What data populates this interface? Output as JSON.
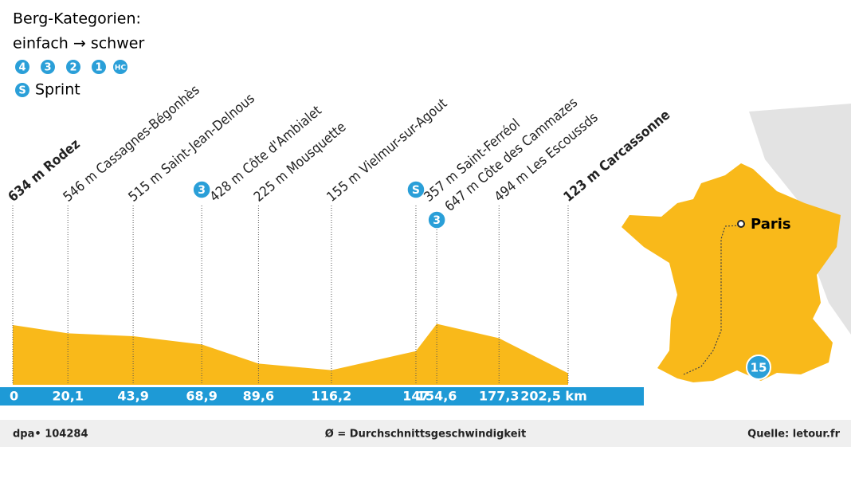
{
  "chart_data": {
    "type": "area",
    "x": [
      0,
      20.1,
      43.9,
      68.9,
      89.6,
      116.2,
      147,
      154.6,
      177.3,
      202.5
    ],
    "values": [
      634,
      546,
      515,
      428,
      225,
      155,
      357,
      647,
      494,
      123
    ],
    "value_labels": [
      "634 m Rodez",
      "546 m Cassagnes-Bégonhès",
      "515 m Saint-Jean-Delnous",
      "428 m Côte d'Ambialet",
      "225 m Mousquette",
      "155 m Vielmur-sur-Agout",
      "357 m Saint-Ferréol",
      "647 m Côte des Cammazes",
      "494 m Les Escoussds",
      "123 m Carcassonne"
    ],
    "badges": [
      null,
      null,
      null,
      "3",
      null,
      null,
      "S",
      "3",
      null,
      null
    ],
    "color": "#f9b91a",
    "xlim": [
      0,
      202.5
    ],
    "xticks": [
      0,
      {
        "value": 20.1,
        "label": "20,1"
      },
      {
        "value": 43.9,
        "label": "43,9"
      },
      {
        "value": 68.9,
        "label": "68,9"
      },
      {
        "value": 89.6,
        "label": "89,6"
      },
      {
        "value": 116.2,
        "label": "116,2"
      },
      147,
      {
        "value": 154.6,
        "label": "154,6"
      },
      {
        "value": 177.3,
        "label": "177,3"
      },
      {
        "value": 202.5,
        "label": "202,5 km"
      }
    ],
    "ylim": [
      0,
      3000
    ]
  },
  "legend": {
    "title": "Berg-Kategorien:",
    "subtitle": "einfach → schwer",
    "categories": [
      "4",
      "3",
      "2",
      "1",
      "HC"
    ],
    "sprint_icon": "S",
    "sprint": "Sprint"
  },
  "map": {
    "city": "Paris",
    "stage": "15"
  },
  "footer": {
    "left": "dpa• 104284",
    "center": "Ø = Durchschnittsgeschwindigkeit",
    "right": "Quelle: letour.fr"
  }
}
